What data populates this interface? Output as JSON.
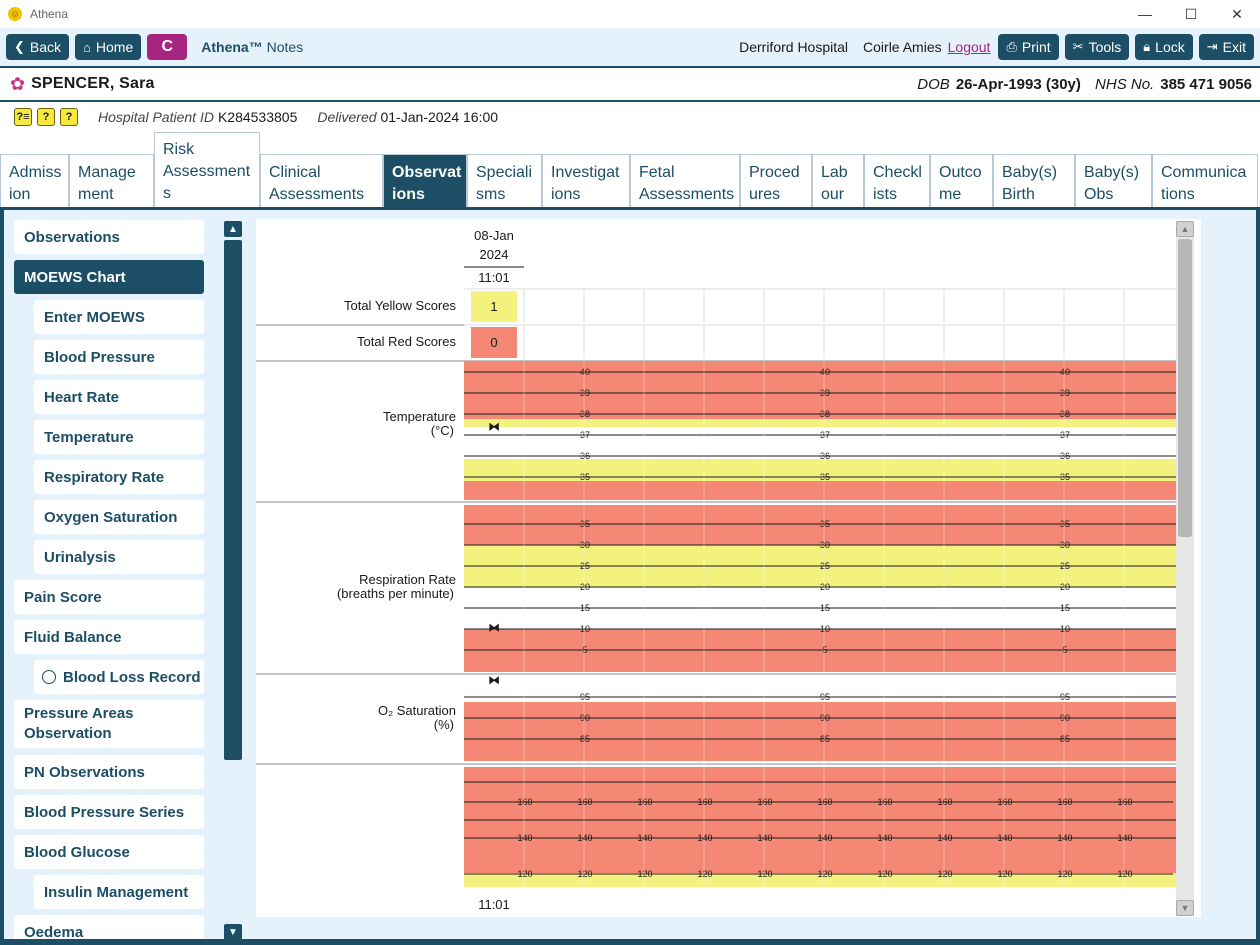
{
  "window": {
    "title": "Athena",
    "minimize": "—",
    "maximize": "☐",
    "close": "✕"
  },
  "toolbar": {
    "back": "Back",
    "home": "Home",
    "c_button": "C",
    "app_brand": "Athena™",
    "app_module": "Notes",
    "hospital": "Derriford Hospital",
    "user": "Coirle Amies",
    "logout": "Logout",
    "print": "Print",
    "tools": "Tools",
    "lock": "Lock",
    "exit": "Exit"
  },
  "patient": {
    "name": "SPENCER, Sara",
    "dob_label": "DOB",
    "dob": "26-Apr-1993 (30y)",
    "nhs_label": "NHS No.",
    "nhs": "385 471 9056",
    "hospital_id_label": "Hospital Patient ID",
    "hospital_id": "K284533805",
    "delivered_label": "Delivered",
    "delivered": "01-Jan-2024 16:00"
  },
  "tabs": [
    {
      "line1": "Admiss",
      "line2": "ion"
    },
    {
      "line1": "Manage",
      "line2": "ment"
    },
    {
      "line1": "Risk",
      "line2": "Assessment",
      "line3": "s"
    },
    {
      "line1": "Clinical",
      "line2": "Assessments"
    },
    {
      "line1": "Observat",
      "line2": "ions"
    },
    {
      "line1": "Speciali",
      "line2": "sms"
    },
    {
      "line1": "Investigat",
      "line2": "ions"
    },
    {
      "line1": "Fetal",
      "line2": "Assessments"
    },
    {
      "line1": "Proced",
      "line2": "ures"
    },
    {
      "line1": "Lab",
      "line2": "our"
    },
    {
      "line1": "Checkl",
      "line2": "ists"
    },
    {
      "line1": "Outco",
      "line2": "me"
    },
    {
      "line1": "Baby(s)",
      "line2": "Birth"
    },
    {
      "line1": "Baby(s)",
      "line2": "Obs"
    },
    {
      "line1": "Communica",
      "line2": "tions"
    }
  ],
  "sidebar": [
    {
      "label": "Observations"
    },
    {
      "label": "MOEWS Chart"
    },
    {
      "label": "Enter MOEWS"
    },
    {
      "label": "Blood Pressure"
    },
    {
      "label": "Heart Rate"
    },
    {
      "label": "Temperature"
    },
    {
      "label": "Respiratory Rate"
    },
    {
      "label": "Oxygen Saturation"
    },
    {
      "label": "Urinalysis"
    },
    {
      "label": "Pain Score"
    },
    {
      "label": "Fluid Balance"
    },
    {
      "label": "Blood Loss Record"
    },
    {
      "label": "Pressure Areas",
      "label2": "Observation"
    },
    {
      "label": "PN Observations"
    },
    {
      "label": "Blood Pressure Series"
    },
    {
      "label": "Blood Glucose"
    },
    {
      "label": "Insulin Management"
    },
    {
      "label": "Oedema"
    }
  ],
  "chart_data": {
    "type": "table",
    "date_line1": "08-Jan",
    "date_line2": "2024",
    "time": "11:01",
    "time_footer": "11:01",
    "colors": {
      "red": "#f48874",
      "yellow": "#f3f27f",
      "white": "#ffffff"
    },
    "totals": [
      {
        "label": "Total Yellow Scores",
        "value": "1",
        "color": "#f3f27f"
      },
      {
        "label": "Total Red Scores",
        "value": "0",
        "color": "#f48874"
      }
    ],
    "temperature": {
      "label": "Temperature",
      "unit": "(°C)",
      "ticks": [
        "40",
        "39",
        "38",
        "37",
        "36",
        "35"
      ],
      "bands": [
        "red",
        "yellow",
        "white",
        "yellow",
        "red"
      ],
      "value": 37.4
    },
    "respiration": {
      "label": "Respiration Rate",
      "unit": "(breaths per minute)",
      "ticks": [
        "35",
        "30",
        "25",
        "20",
        "15",
        "10",
        "5"
      ],
      "bands": [
        "red",
        "yellow",
        "white",
        "red"
      ],
      "value": 10.3
    },
    "o2": {
      "label": "O₂ Saturation",
      "unit": "(%)",
      "ticks": [
        "95",
        "90",
        "85"
      ],
      "bands": [
        "white",
        "red"
      ],
      "value": 99
    },
    "bp": {
      "ticks": [
        "160",
        "140",
        "120"
      ],
      "bands": [
        "red",
        "yellow"
      ]
    }
  }
}
